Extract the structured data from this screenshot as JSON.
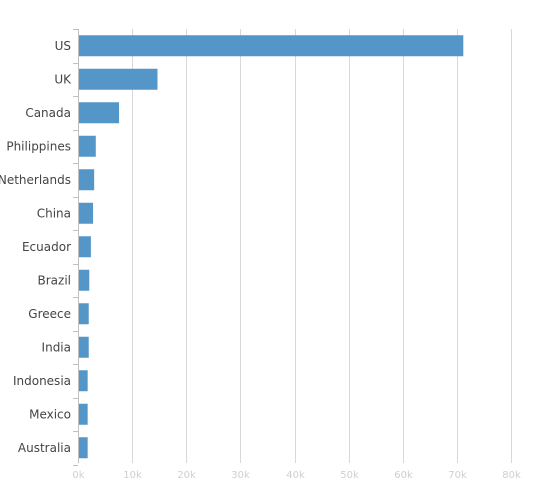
{
  "chart_data": {
    "type": "bar",
    "orientation": "horizontal",
    "categories": [
      "US",
      "UK",
      "Canada",
      "Philippines",
      "Netherlands",
      "China",
      "Ecuador",
      "Brazil",
      "Greece",
      "India",
      "Indonesia",
      "Mexico",
      "Australia"
    ],
    "values": [
      71000,
      14500,
      7400,
      3100,
      2800,
      2600,
      2200,
      1900,
      1800,
      1800,
      1600,
      1600,
      1600
    ],
    "x_ticks": [
      "0k",
      "10k",
      "20k",
      "30k",
      "40k",
      "50k",
      "60k",
      "70k",
      "80k"
    ],
    "xlim": [
      0,
      80000
    ],
    "grid": true,
    "legend": "none",
    "title": "",
    "xlabel": "",
    "ylabel": ""
  },
  "colors": {
    "bar": "#5596c8",
    "grid": "#d8d8d8",
    "axis": "#c0c0c0"
  }
}
